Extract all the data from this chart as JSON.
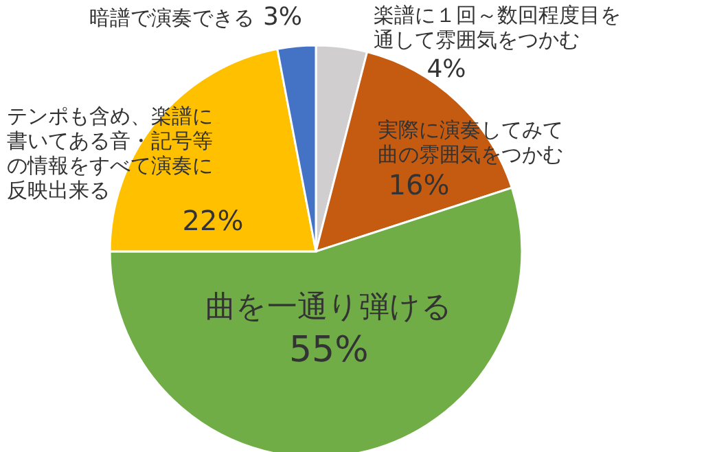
{
  "chart_data": {
    "type": "pie",
    "categories": [
      "楽譜に１回～数回程度目を通して雰囲気をつかむ",
      "実際に演奏してみて曲の雰囲気をつかむ",
      "曲を一通り弾ける",
      "テンポも含め、楽譜に書いてある音・記号等の情報をすべて演奏に反映出来る",
      "暗譜で演奏できる"
    ],
    "values": [
      4,
      16,
      55,
      22,
      3
    ],
    "value_labels": [
      "4%",
      "16%",
      "55%",
      "22%",
      "3%"
    ],
    "colors": [
      "#d0cece",
      "#c55a11",
      "#70ad47",
      "#ffc000",
      "#4472c4"
    ]
  }
}
